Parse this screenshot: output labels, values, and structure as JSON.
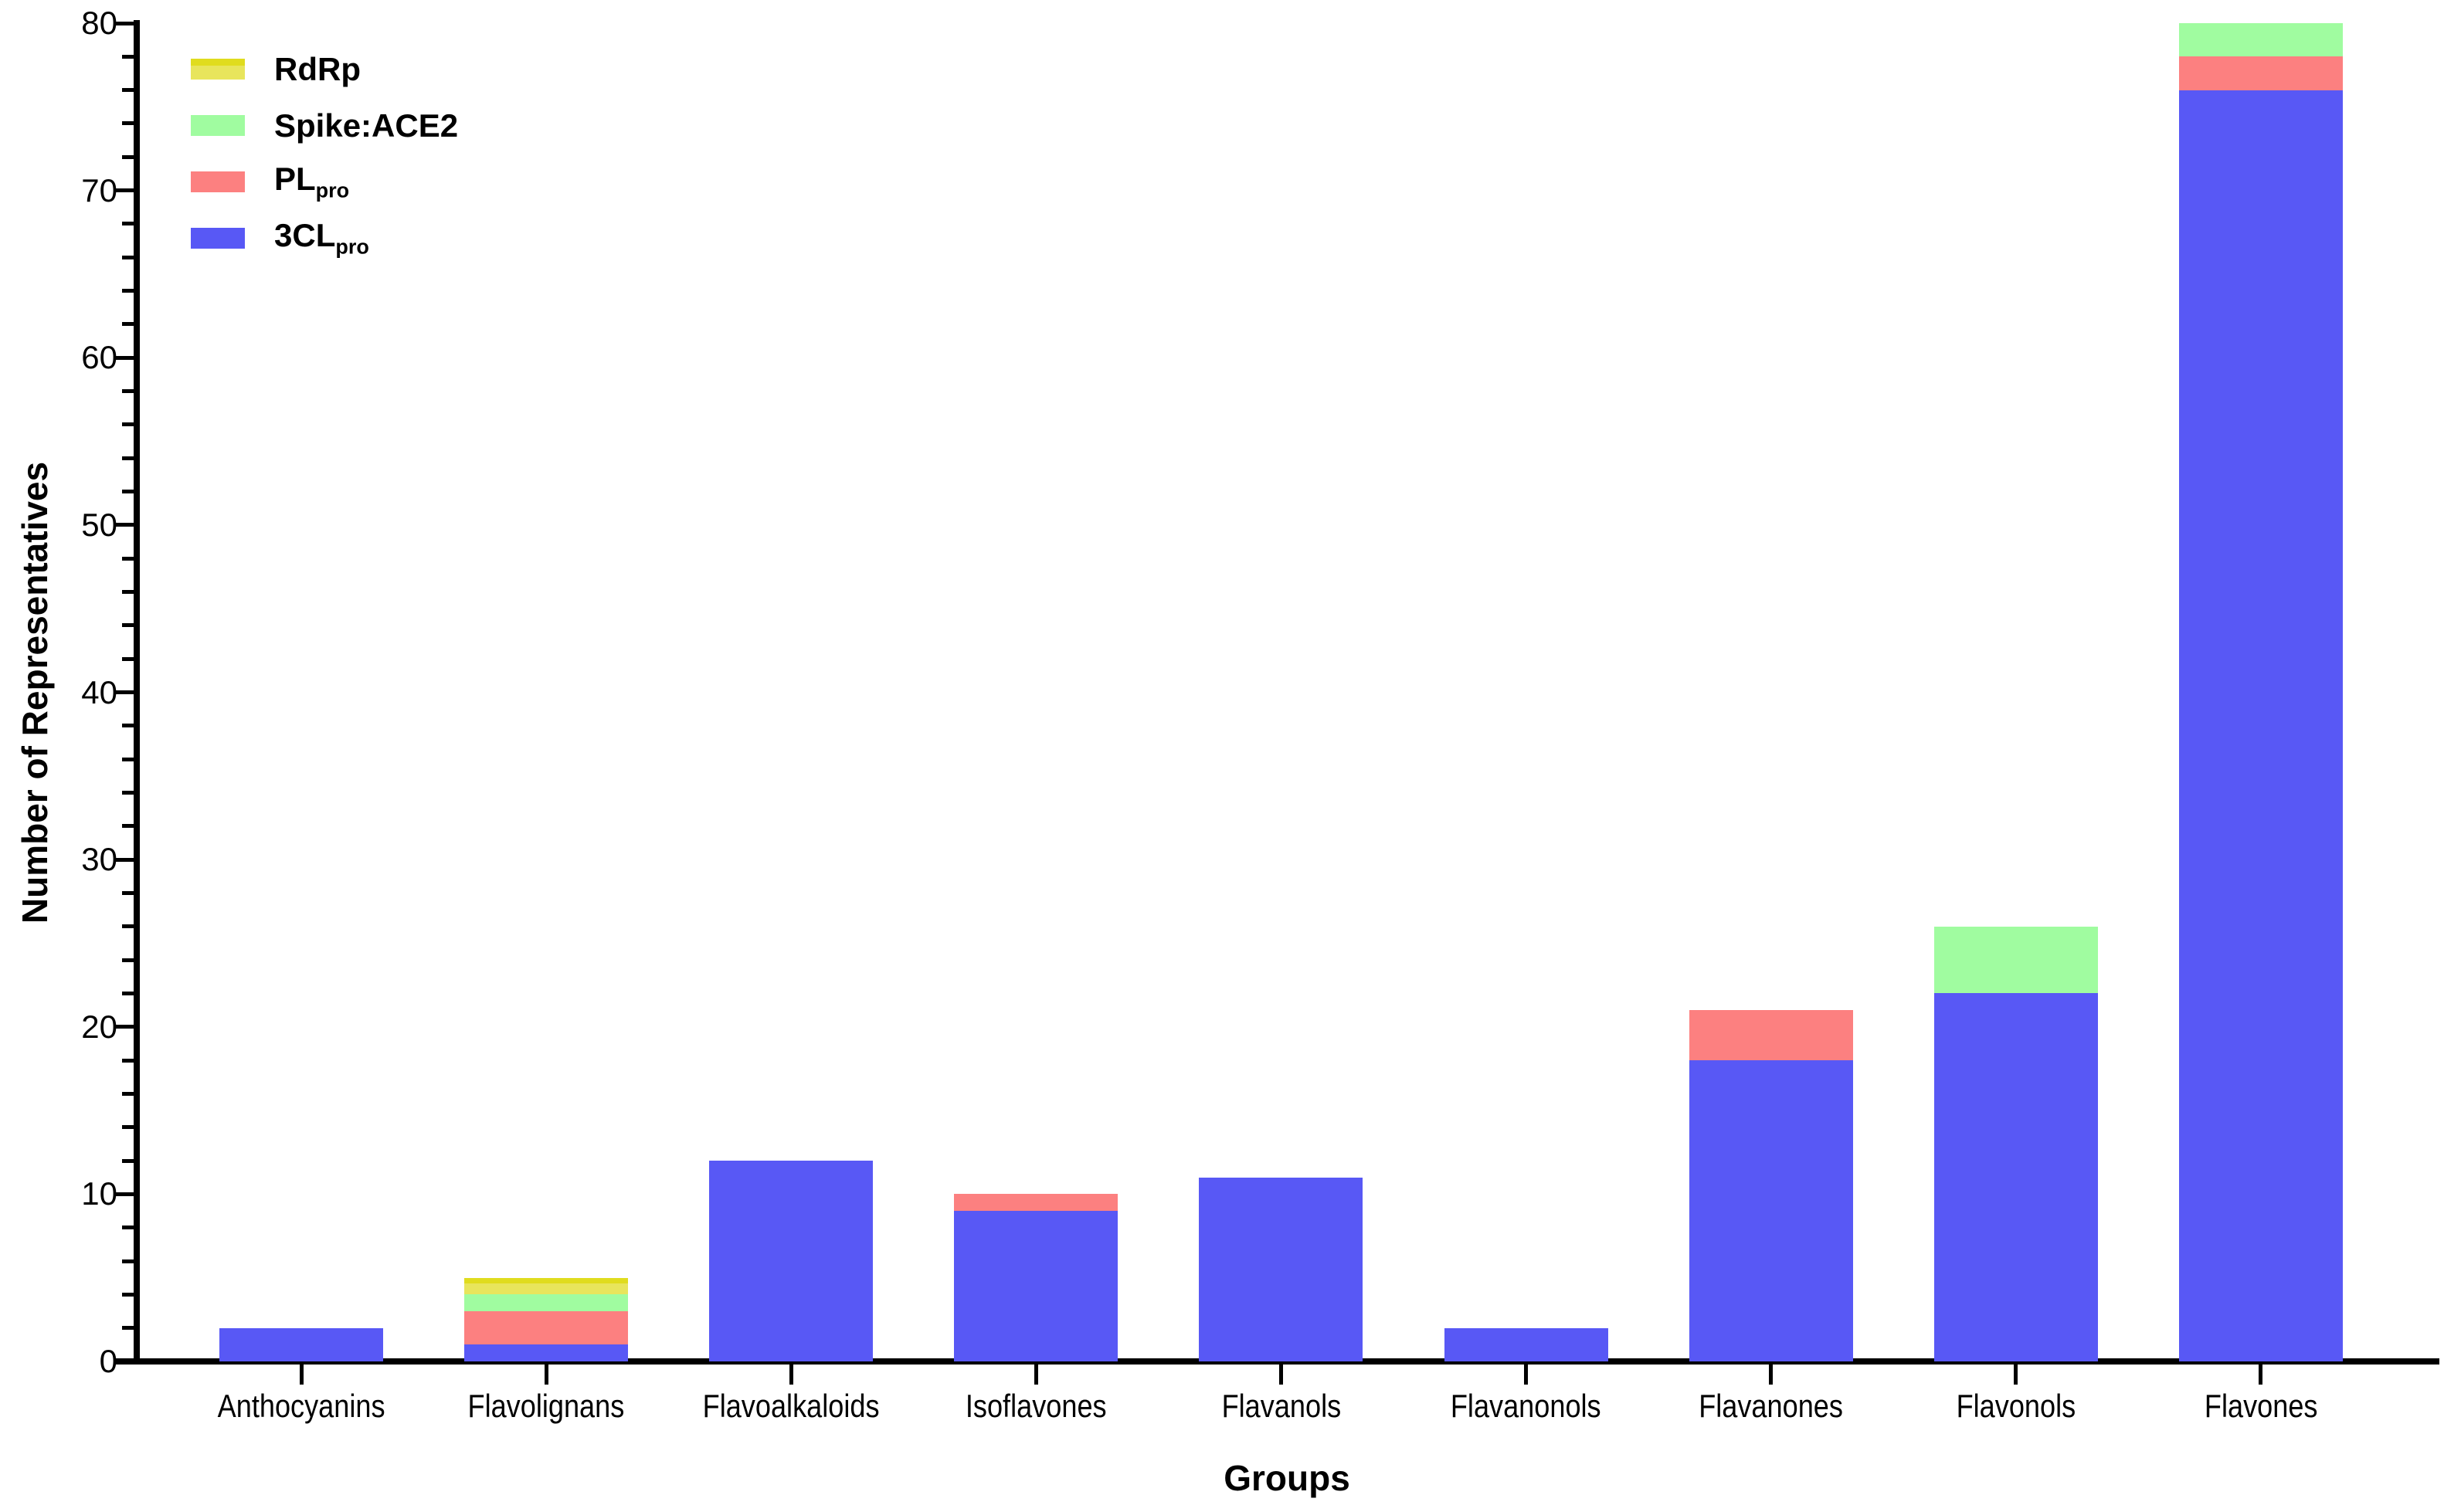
{
  "chart_data": {
    "type": "bar",
    "stacked": true,
    "title": "",
    "xlabel": "Groups",
    "ylabel": "Number of Representatives",
    "ylim": [
      0,
      80
    ],
    "yticks": [
      0,
      10,
      20,
      30,
      40,
      50,
      60,
      70,
      80
    ],
    "ytick_minor_interval": 2,
    "grid": false,
    "legend_position": "top-left",
    "categories": [
      "Anthocyanins",
      "Flavolignans",
      "Flavoalkaloids",
      "Isoflavones",
      "Flavanols",
      "Flavanonols",
      "Flavanones",
      "Flavonols",
      "Flavones"
    ],
    "series": [
      {
        "name": "3clpro",
        "label": "3CL",
        "label_sub": "pro",
        "color": "#5858F5",
        "values": [
          2,
          1,
          12,
          9,
          11,
          2,
          18,
          22,
          76
        ]
      },
      {
        "name": "plpro",
        "label": "PL",
        "label_sub": "pro",
        "color": "#FC8080",
        "values": [
          0,
          2,
          0,
          1,
          0,
          0,
          3,
          0,
          2
        ]
      },
      {
        "name": "spike-ace2",
        "label": "Spike:ACE2",
        "label_sub": "",
        "color": "#A0FCA0",
        "values": [
          0,
          1,
          0,
          0,
          0,
          0,
          0,
          4,
          2
        ]
      },
      {
        "name": "rdrp",
        "label": "RdRp",
        "label_sub": "",
        "color": "#E0DC1E",
        "color_inner": "#E8E55C",
        "values": [
          0,
          1,
          0,
          0,
          0,
          0,
          0,
          0,
          0
        ]
      }
    ],
    "legend_order": [
      "rdrp",
      "spike-ace2",
      "plpro",
      "3clpro"
    ]
  }
}
